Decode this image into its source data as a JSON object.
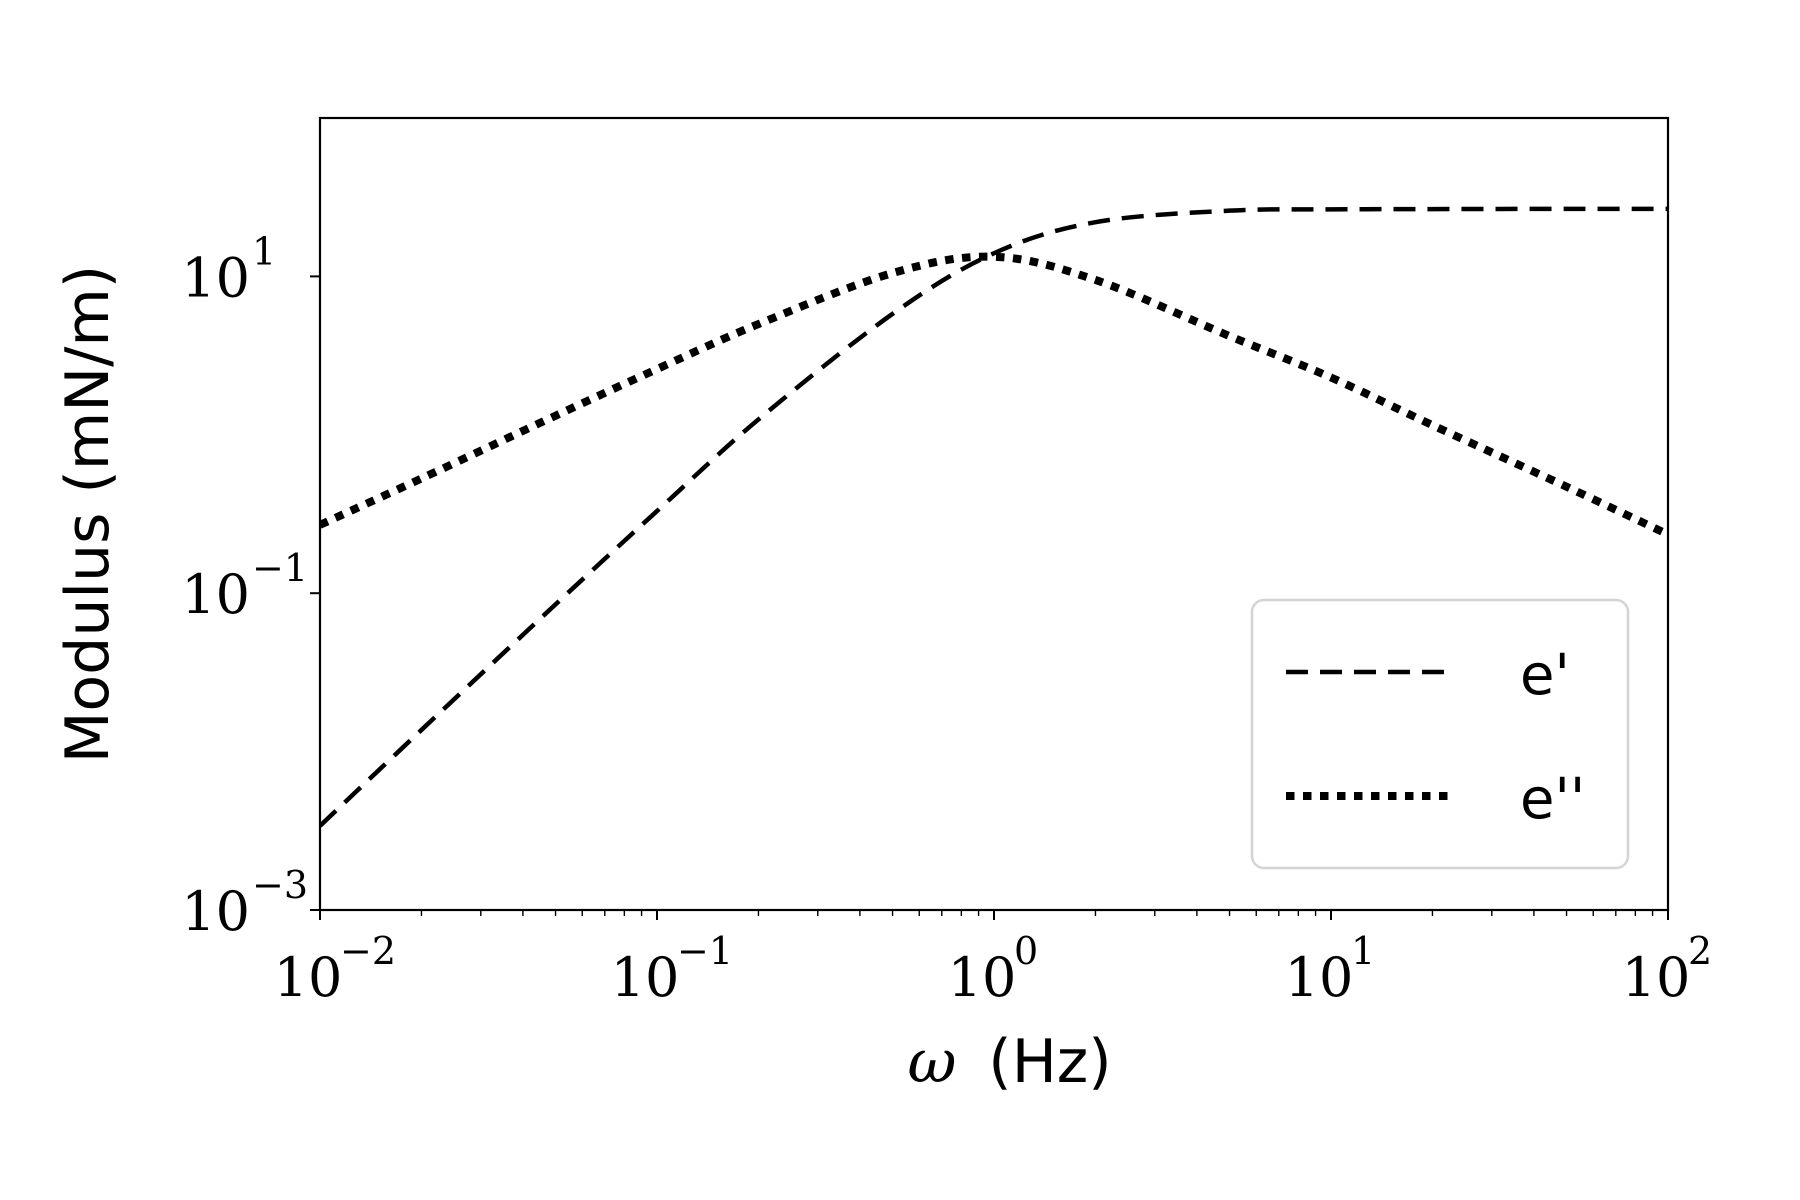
{
  "chart_data": {
    "type": "line",
    "xlabel_symbol": "ω",
    "xlabel_unit": "(Hz)",
    "ylabel": "Modulus (mN/m)",
    "x_scale": "log",
    "y_scale": "log",
    "xlim": [
      0.01,
      100
    ],
    "ylim": [
      0.001,
      100
    ],
    "grid": false,
    "legend_position": "lower-right",
    "x_ticks": [
      {
        "base": "10",
        "exp": "−2",
        "value": 0.01
      },
      {
        "base": "10",
        "exp": "−1",
        "value": 0.1
      },
      {
        "base": "10",
        "exp": "0",
        "value": 1
      },
      {
        "base": "10",
        "exp": "1",
        "value": 10
      },
      {
        "base": "10",
        "exp": "2",
        "value": 100
      }
    ],
    "y_ticks": [
      {
        "base": "10",
        "exp": "−3",
        "value": 0.001
      },
      {
        "base": "10",
        "exp": "−1",
        "value": 0.1
      },
      {
        "base": "10",
        "exp": "1",
        "value": 10
      }
    ],
    "series": [
      {
        "name": "e'",
        "style": "dashed",
        "color": "#000000",
        "x": [
          0.01,
          0.02,
          0.05,
          0.1,
          0.2,
          0.5,
          1,
          2,
          5,
          10,
          20,
          50,
          100
        ],
        "y": [
          0.0034,
          0.0137,
          0.085,
          0.33,
          1.25,
          5.8,
          14.0,
          22.0,
          26.0,
          26.5,
          26.6,
          26.7,
          26.7
        ]
      },
      {
        "name": "e''",
        "style": "dotted",
        "color": "#000000",
        "x": [
          0.01,
          0.02,
          0.05,
          0.1,
          0.2,
          0.5,
          1,
          2,
          5,
          10,
          20,
          50,
          100
        ],
        "y": [
          0.27,
          0.53,
          1.32,
          2.6,
          5.0,
          10.5,
          13.3,
          9.5,
          4.2,
          2.3,
          1.15,
          0.47,
          0.235
        ]
      }
    ]
  }
}
